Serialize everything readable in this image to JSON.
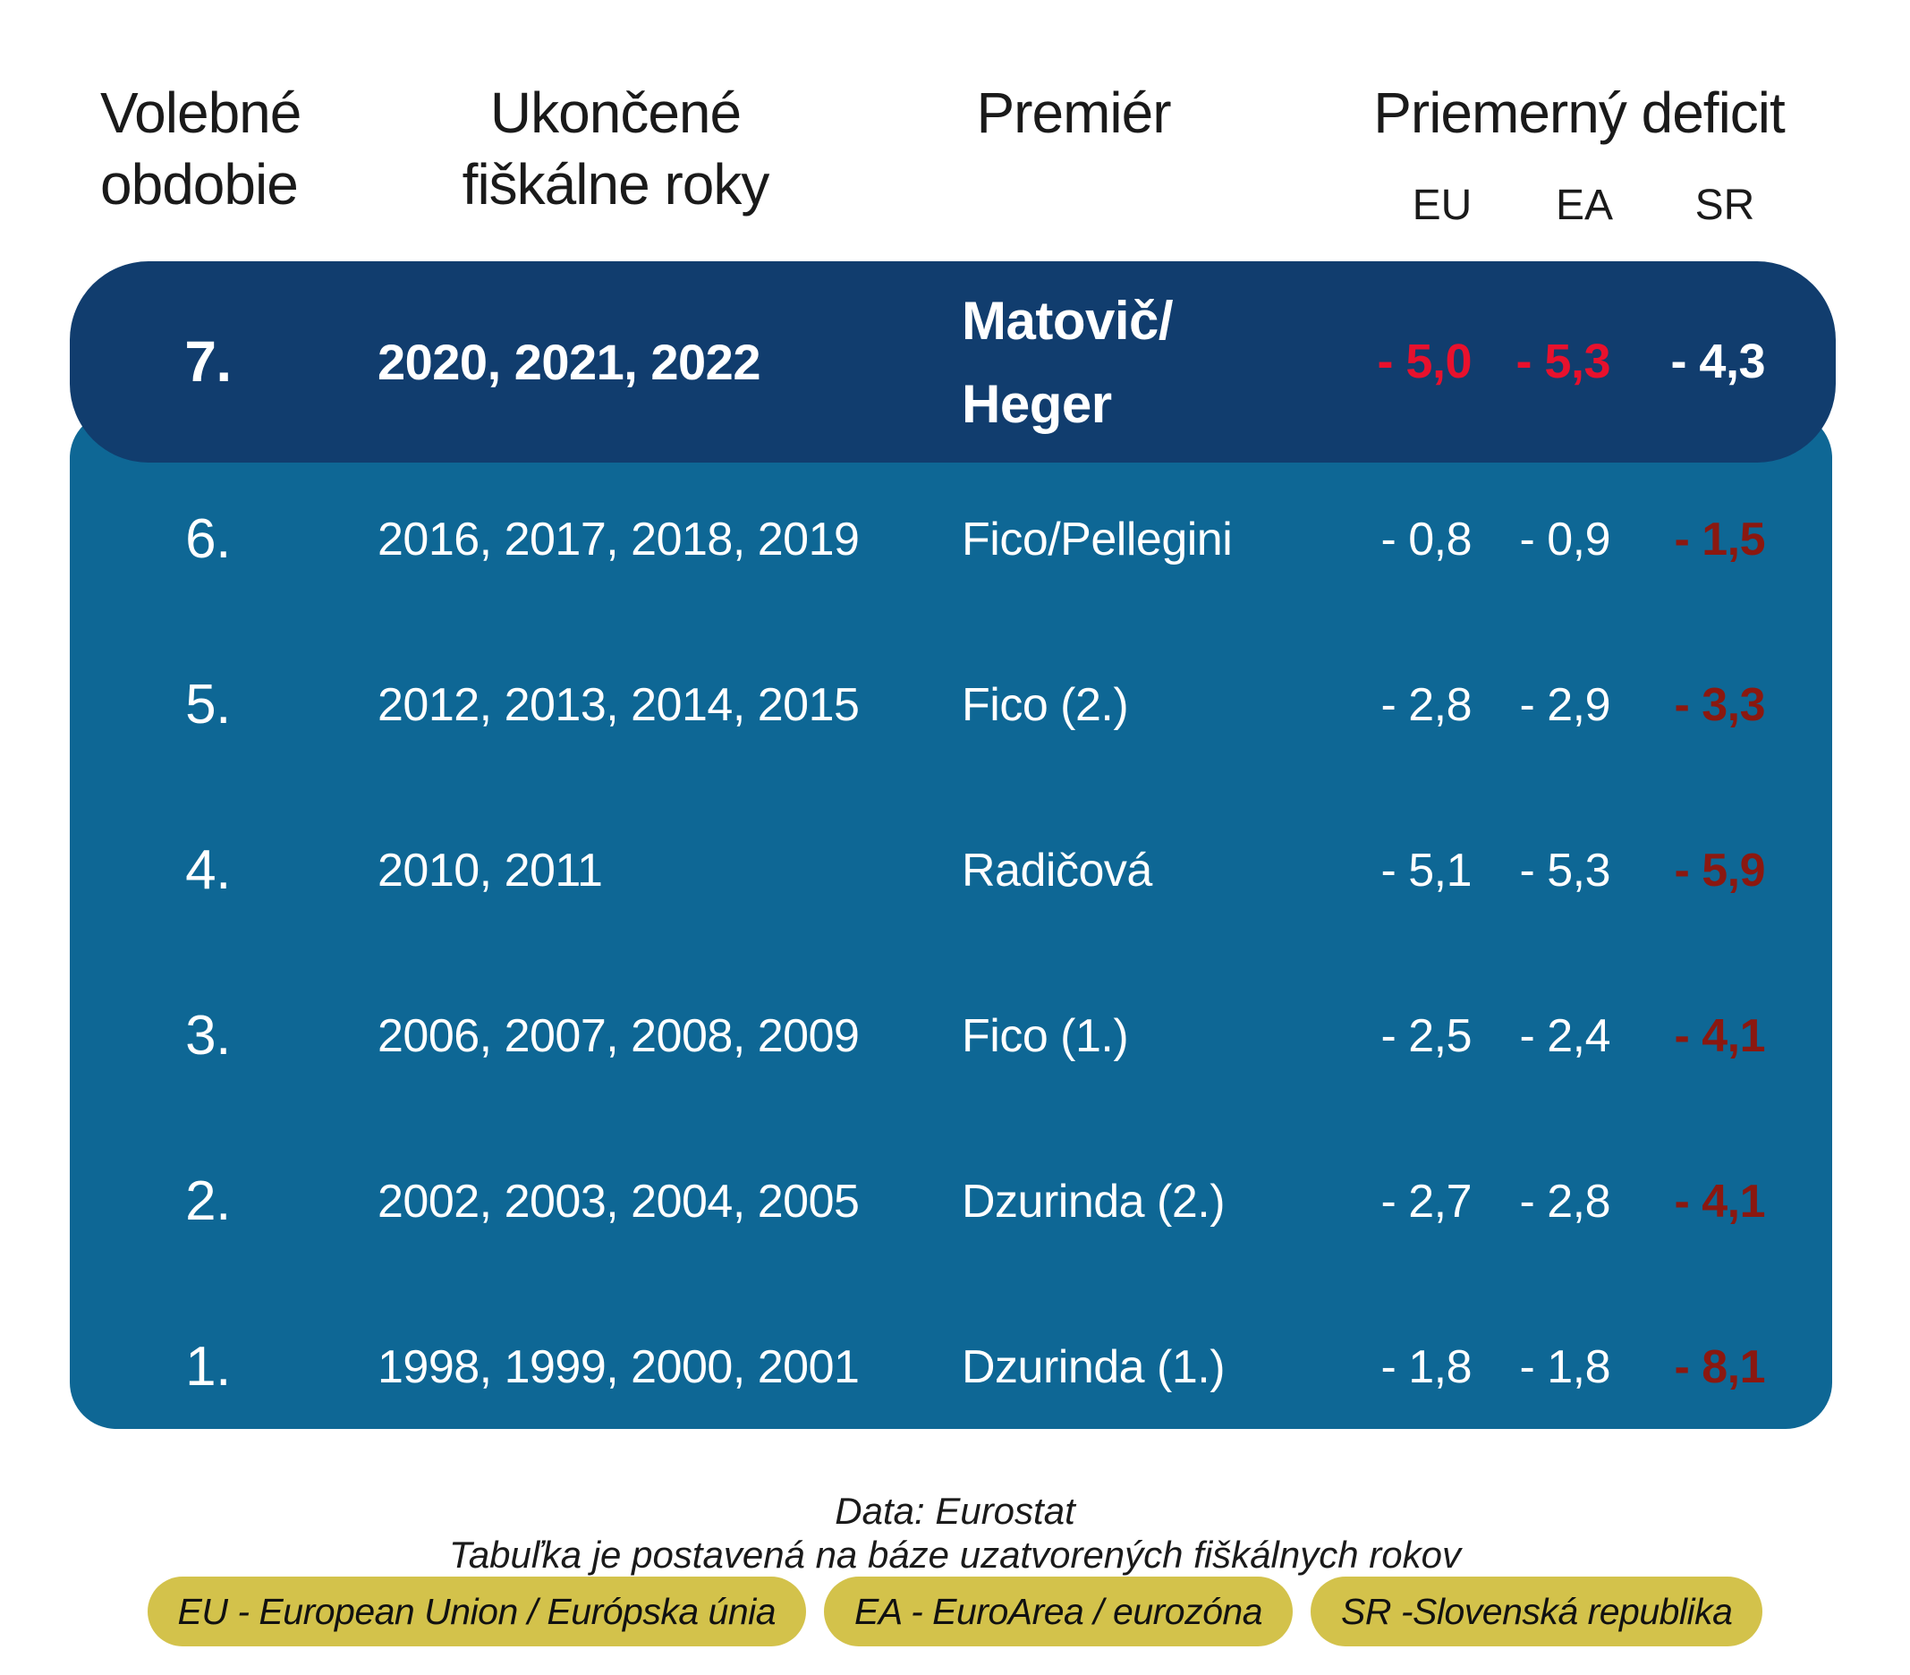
{
  "header": {
    "col_period": "Volebné\nobdobie",
    "col_years": "Ukončené\nfiškálne roky",
    "col_premier": "Premiér",
    "col_deficit": "Priemerný deficit",
    "subcols": {
      "eu": "EU",
      "ea": "EA",
      "sr": "SR"
    }
  },
  "table": {
    "rows": [
      {
        "rank": "7.",
        "years": "2020, 2021, 2022",
        "premier_line1": "Matovič/",
        "premier_line2": "Heger",
        "eu": "- 5,0",
        "ea": "- 5,3",
        "sr": "- 4,3"
      },
      {
        "rank": "6.",
        "years": "2016, 2017, 2018, 2019",
        "premier": "Fico/Pellegini",
        "eu": "- 0,8",
        "ea": "- 0,9",
        "sr": "- 1,5"
      },
      {
        "rank": "5.",
        "years": "2012, 2013, 2014, 2015",
        "premier": "Fico (2.)",
        "eu": "- 2,8",
        "ea": "- 2,9",
        "sr": "- 3,3"
      },
      {
        "rank": "4.",
        "years": "2010, 2011",
        "premier": "Radičová",
        "eu": "- 5,1",
        "ea": "- 5,3",
        "sr": "- 5,9"
      },
      {
        "rank": "3.",
        "years": "2006, 2007, 2008, 2009",
        "premier": "Fico (1.)",
        "eu": "- 2,5",
        "ea": "- 2,4",
        "sr": "- 4,1"
      },
      {
        "rank": "2.",
        "years": "2002, 2003, 2004, 2005",
        "premier": "Dzurinda (2.)",
        "eu": "- 2,7",
        "ea": "- 2,8",
        "sr": "- 4,1"
      },
      {
        "rank": "1.",
        "years": "1998, 1999, 2000, 2001",
        "premier": "Dzurinda (1.)",
        "eu": "- 1,8",
        "ea": "- 1,8",
        "sr": "- 8,1"
      }
    ]
  },
  "chart_data": {
    "type": "table",
    "title": "Priemerný deficit",
    "columns": [
      "Volebné obdobie",
      "Ukončené fiškálne roky",
      "Premiér",
      "EU",
      "EA",
      "SR"
    ],
    "rows": [
      {
        "obdobie": 7,
        "roky": "2020, 2021, 2022",
        "premier": "Matovič/Heger",
        "eu": -5.0,
        "ea": -5.3,
        "sr": -4.3,
        "highlighted": true
      },
      {
        "obdobie": 6,
        "roky": "2016, 2017, 2018, 2019",
        "premier": "Fico/Pellegini",
        "eu": -0.8,
        "ea": -0.9,
        "sr": -1.5
      },
      {
        "obdobie": 5,
        "roky": "2012, 2013, 2014, 2015",
        "premier": "Fico (2.)",
        "eu": -2.8,
        "ea": -2.9,
        "sr": -3.3
      },
      {
        "obdobie": 4,
        "roky": "2010, 2011",
        "premier": "Radičová",
        "eu": -5.1,
        "ea": -5.3,
        "sr": -5.9
      },
      {
        "obdobie": 3,
        "roky": "2006, 2007, 2008, 2009",
        "premier": "Fico (1.)",
        "eu": -2.5,
        "ea": -2.4,
        "sr": -4.1
      },
      {
        "obdobie": 2,
        "roky": "2002, 2003, 2004, 2005",
        "premier": "Dzurinda (2.)",
        "eu": -2.7,
        "ea": -2.8,
        "sr": -4.1
      },
      {
        "obdobie": 1,
        "roky": "1998, 1999, 2000, 2001",
        "premier": "Dzurinda (1.)",
        "eu": -1.8,
        "ea": -1.8,
        "sr": -8.1
      }
    ]
  },
  "footer": {
    "source": "Data: Eurostat",
    "note": "Tabuľka je postavená na báze uzatvorených fiškálnych rokov",
    "legend": {
      "eu": "EU - European Union / Európska únia",
      "ea": "EA - EuroArea / eurozóna",
      "sr": "SR -Slovenská republika"
    }
  },
  "colors": {
    "highlight_row_bg": "#113d6e",
    "table_bg": "#0e6795",
    "accent_red": "#e8112d",
    "dark_red": "#8b1810",
    "legend_yellow": "#d3c24b",
    "header_text": "#1a1a1a",
    "row_text": "#ffffff"
  }
}
